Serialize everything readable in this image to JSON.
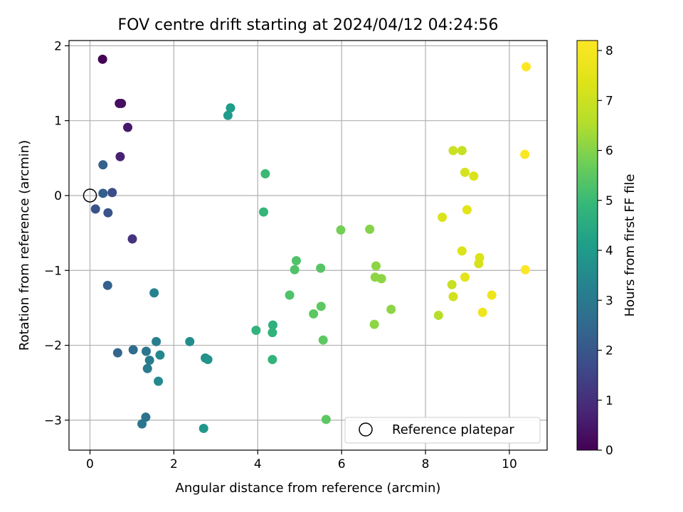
{
  "chart_data": {
    "type": "scatter",
    "title": "FOV centre drift starting at 2024/04/12 04:24:56",
    "xlabel": "Angular distance from reference (arcmin)",
    "ylabel": "Rotation from reference (arcmin)",
    "xlim": [
      -0.5,
      10.9
    ],
    "ylim": [
      -3.4,
      2.07
    ],
    "xticks": [
      0,
      2,
      4,
      6,
      8,
      10
    ],
    "yticks": [
      -3,
      -2,
      -1,
      0,
      1,
      2
    ],
    "grid": true,
    "legend": {
      "position": "bottom-right",
      "entries": [
        {
          "label": "Reference platepar",
          "marker": "open-circle"
        }
      ]
    },
    "reference_point": {
      "x": 0,
      "y": 0
    },
    "colorbar": {
      "label": "Hours from first FF file",
      "range": [
        0,
        8.2
      ],
      "ticks": [
        0,
        1,
        2,
        3,
        4,
        5,
        6,
        7,
        8
      ],
      "colormap": "viridis"
    },
    "points": [
      {
        "x": 0.3,
        "y": 1.82,
        "c": 0.05
      },
      {
        "x": 0.7,
        "y": 1.23,
        "c": 0.25
      },
      {
        "x": 0.75,
        "y": 1.23,
        "c": 0.3
      },
      {
        "x": 0.9,
        "y": 0.91,
        "c": 0.5
      },
      {
        "x": 0.72,
        "y": 0.52,
        "c": 0.7
      },
      {
        "x": 1.01,
        "y": -0.58,
        "c": 1.1
      },
      {
        "x": 0.31,
        "y": 0.41,
        "c": 2.3
      },
      {
        "x": 0.31,
        "y": 0.03,
        "c": 2.2
      },
      {
        "x": 0.53,
        "y": 0.04,
        "c": 1.7
      },
      {
        "x": 0.13,
        "y": -0.18,
        "c": 1.9
      },
      {
        "x": 0.43,
        "y": -0.23,
        "c": 1.9
      },
      {
        "x": 0.42,
        "y": -1.2,
        "c": 2.3
      },
      {
        "x": 1.53,
        "y": -1.3,
        "c": 3.3
      },
      {
        "x": 0.66,
        "y": -2.1,
        "c": 2.4
      },
      {
        "x": 1.03,
        "y": -2.06,
        "c": 2.6
      },
      {
        "x": 1.34,
        "y": -2.08,
        "c": 2.9
      },
      {
        "x": 1.42,
        "y": -2.2,
        "c": 3.1
      },
      {
        "x": 1.37,
        "y": -2.31,
        "c": 3.1
      },
      {
        "x": 1.58,
        "y": -1.95,
        "c": 3.2
      },
      {
        "x": 1.67,
        "y": -2.13,
        "c": 3.4
      },
      {
        "x": 1.63,
        "y": -2.48,
        "c": 3.5
      },
      {
        "x": 1.33,
        "y": -2.96,
        "c": 2.8
      },
      {
        "x": 1.24,
        "y": -3.05,
        "c": 2.9
      },
      {
        "x": 2.38,
        "y": -1.95,
        "c": 3.6
      },
      {
        "x": 2.75,
        "y": -2.17,
        "c": 3.7
      },
      {
        "x": 2.81,
        "y": -2.19,
        "c": 3.8
      },
      {
        "x": 2.71,
        "y": -3.11,
        "c": 3.9
      },
      {
        "x": 3.29,
        "y": 1.07,
        "c": 4.0
      },
      {
        "x": 3.35,
        "y": 1.17,
        "c": 4.1
      },
      {
        "x": 4.18,
        "y": 0.29,
        "c": 5.0
      },
      {
        "x": 4.14,
        "y": -0.22,
        "c": 4.9
      },
      {
        "x": 3.96,
        "y": -1.8,
        "c": 4.8
      },
      {
        "x": 4.36,
        "y": -1.73,
        "c": 4.7
      },
      {
        "x": 4.35,
        "y": -1.83,
        "c": 4.75
      },
      {
        "x": 4.35,
        "y": -2.19,
        "c": 4.8
      },
      {
        "x": 4.92,
        "y": -0.87,
        "c": 5.3
      },
      {
        "x": 4.88,
        "y": -0.99,
        "c": 5.3
      },
      {
        "x": 4.76,
        "y": -1.33,
        "c": 5.3
      },
      {
        "x": 5.5,
        "y": -0.97,
        "c": 5.4
      },
      {
        "x": 5.33,
        "y": -1.58,
        "c": 5.5
      },
      {
        "x": 5.51,
        "y": -1.48,
        "c": 5.5
      },
      {
        "x": 5.56,
        "y": -1.93,
        "c": 5.5
      },
      {
        "x": 5.63,
        "y": -2.99,
        "c": 5.5
      },
      {
        "x": 5.98,
        "y": -0.46,
        "c": 5.8
      },
      {
        "x": 6.67,
        "y": -0.45,
        "c": 6.0
      },
      {
        "x": 6.82,
        "y": -0.94,
        "c": 6.1
      },
      {
        "x": 6.8,
        "y": -1.09,
        "c": 6.1
      },
      {
        "x": 6.95,
        "y": -1.11,
        "c": 6.1
      },
      {
        "x": 6.78,
        "y": -1.72,
        "c": 6.1
      },
      {
        "x": 7.18,
        "y": -1.52,
        "c": 6.1
      },
      {
        "x": 8.31,
        "y": -1.6,
        "c": 6.6
      },
      {
        "x": 8.4,
        "y": -0.29,
        "c": 7.3
      },
      {
        "x": 8.63,
        "y": -1.19,
        "c": 6.9
      },
      {
        "x": 8.66,
        "y": -1.35,
        "c": 7.1
      },
      {
        "x": 8.66,
        "y": 0.6,
        "c": 7.0
      },
      {
        "x": 8.87,
        "y": 0.6,
        "c": 6.9
      },
      {
        "x": 8.94,
        "y": 0.31,
        "c": 7.2
      },
      {
        "x": 9.15,
        "y": 0.26,
        "c": 7.3
      },
      {
        "x": 8.99,
        "y": -0.19,
        "c": 7.5
      },
      {
        "x": 8.87,
        "y": -0.74,
        "c": 7.3
      },
      {
        "x": 8.94,
        "y": -1.09,
        "c": 7.5
      },
      {
        "x": 9.29,
        "y": -0.83,
        "c": 7.3
      },
      {
        "x": 9.27,
        "y": -0.91,
        "c": 7.2
      },
      {
        "x": 9.58,
        "y": -1.33,
        "c": 7.8
      },
      {
        "x": 9.36,
        "y": -1.56,
        "c": 7.8
      },
      {
        "x": 10.4,
        "y": 1.72,
        "c": 8.2
      },
      {
        "x": 10.37,
        "y": 0.55,
        "c": 8.1
      },
      {
        "x": 10.38,
        "y": -0.99,
        "c": 8.2
      }
    ]
  }
}
